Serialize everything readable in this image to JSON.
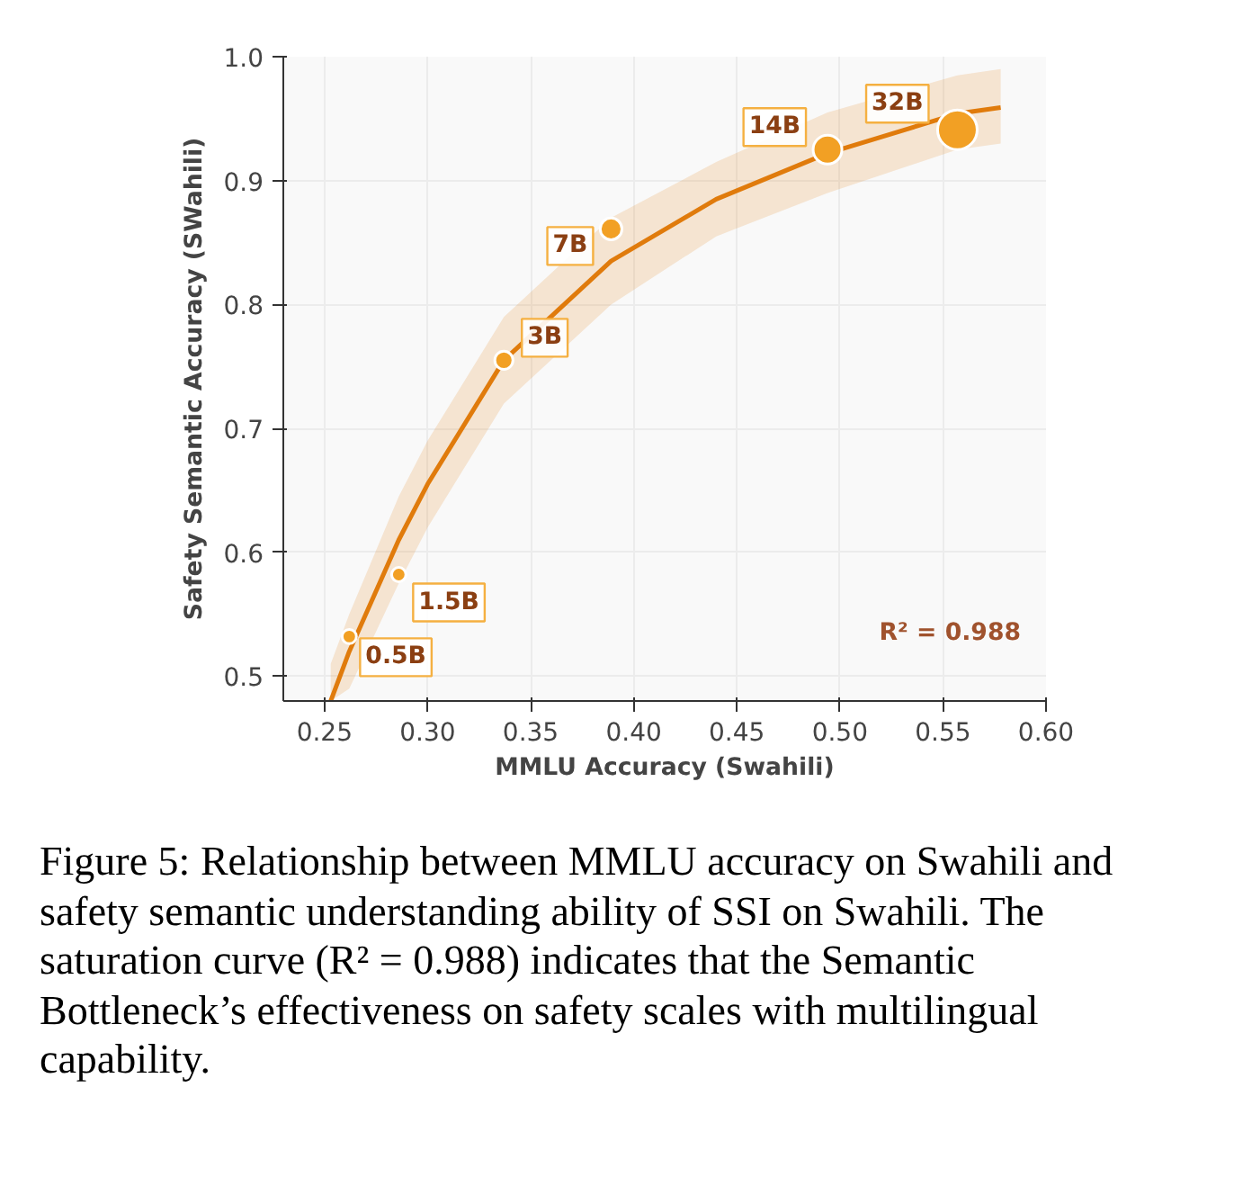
{
  "chart_data": {
    "type": "bubble",
    "xlabel": "MMLU Accuracy (Swahili)",
    "ylabel": "Safety Semantic Accuracy (SWahili)",
    "x": [
      0.262,
      0.286,
      0.337,
      0.389,
      0.494,
      0.557
    ],
    "series": [
      {
        "marker": "circle",
        "color": "#f2a024",
        "values": [
          0.532,
          0.582,
          0.755,
          0.861,
          0.925,
          0.941
        ],
        "sizes": [
          0.13,
          0.13,
          0.21,
          0.3,
          0.53,
          1
        ]
      },
      {
        "type": "line",
        "color": "#e07b0c",
        "x": [
          0.253,
          0.262,
          0.286,
          0.3,
          0.337,
          0.389,
          0.44,
          0.494,
          0.557,
          0.578
        ],
        "values": [
          0.48,
          0.52,
          0.61,
          0.655,
          0.755,
          0.835,
          0.885,
          0.922,
          0.954,
          0.959
        ],
        "lower": [
          0.48,
          0.49,
          0.575,
          0.62,
          0.72,
          0.8,
          0.855,
          0.89,
          0.925,
          0.93
        ],
        "upper": [
          0.51,
          0.55,
          0.645,
          0.69,
          0.79,
          0.87,
          0.915,
          0.955,
          0.985,
          0.99
        ]
      }
    ],
    "xlim": [
      0.23,
      0.6
    ],
    "xticks": [
      0.25,
      {
        "value": 0.3,
        "label": "0.30"
      },
      0.35,
      {
        "value": 0.4,
        "label": "0.40"
      },
      0.45,
      {
        "value": 0.5,
        "label": "0.50"
      },
      0.55,
      {
        "value": 0.6,
        "label": "0.60"
      }
    ],
    "ylim": [
      0.48,
      1.0
    ],
    "yticks": [
      0.5,
      0.6,
      0.7,
      0.8,
      0.9,
      {
        "value": 1.0,
        "label": "1.0"
      }
    ],
    "grid": true,
    "line_style": "solid",
    "annotations": [
      {
        "text": "0.5B",
        "x": 0.262,
        "y": 0.532
      },
      {
        "text": "1.5B",
        "x": 0.286,
        "y": 0.582
      },
      {
        "text": "3B",
        "x": 0.337,
        "y": 0.755
      },
      {
        "text": "7B",
        "x": 0.389,
        "y": 0.861
      },
      {
        "text": "14B",
        "x": 0.494,
        "y": 0.925
      },
      {
        "text": "32B",
        "x": 0.557,
        "y": 0.941
      },
      "R² = 0.988",
      "Figure 5: Relationship between MMLU accuracy on Swahili and safety semantic understanding ability of SSI on Swahili. The saturation curve (R² = 0.988) indicates that the Semantic Bottleneck’s effectiveness on safety scales with multilingual capability."
    ]
  }
}
